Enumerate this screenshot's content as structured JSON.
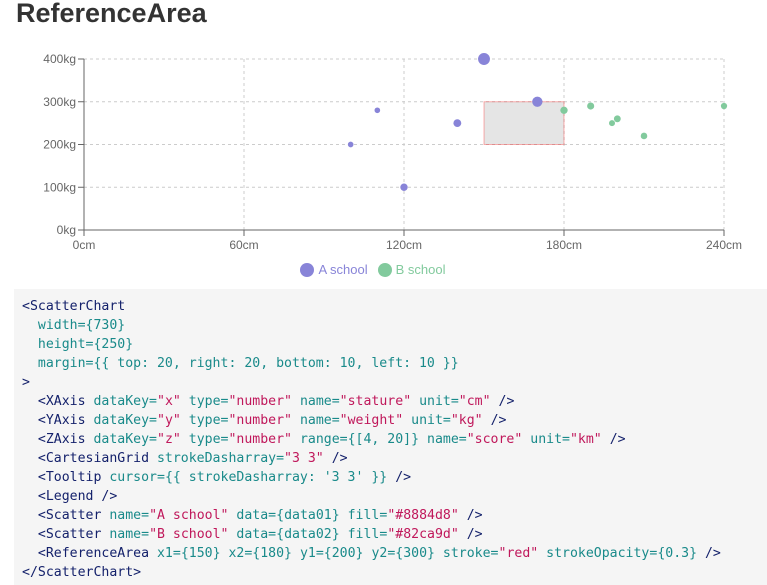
{
  "page": {
    "title": "ReferenceArea"
  },
  "chart_data": {
    "type": "scatter",
    "x_ticks": [
      "0cm",
      "60cm",
      "120cm",
      "180cm",
      "240cm"
    ],
    "y_ticks": [
      "0kg",
      "100kg",
      "200kg",
      "300kg",
      "400kg"
    ],
    "xlim": [
      0,
      240
    ],
    "ylim": [
      0,
      400
    ],
    "x_unit": "cm",
    "y_unit": "kg",
    "z_range_px": [
      4,
      20
    ],
    "grid": true,
    "legend_position": "bottom",
    "series": [
      {
        "name": "A school",
        "color": "#8884d8",
        "points": [
          {
            "x": 100,
            "y": 200,
            "z": 200
          },
          {
            "x": 120,
            "y": 100,
            "z": 260
          },
          {
            "x": 170,
            "y": 300,
            "z": 400
          },
          {
            "x": 140,
            "y": 250,
            "z": 280
          },
          {
            "x": 150,
            "y": 400,
            "z": 500
          },
          {
            "x": 110,
            "y": 280,
            "z": 200
          }
        ]
      },
      {
        "name": "B school",
        "color": "#82ca9d",
        "points": [
          {
            "x": 200,
            "y": 260,
            "z": 240
          },
          {
            "x": 240,
            "y": 290,
            "z": 220
          },
          {
            "x": 190,
            "y": 290,
            "z": 250
          },
          {
            "x": 198,
            "y": 250,
            "z": 210
          },
          {
            "x": 180,
            "y": 280,
            "z": 260
          },
          {
            "x": 210,
            "y": 220,
            "z": 230
          }
        ]
      }
    ],
    "reference_area": {
      "x1": 150,
      "x2": 180,
      "y1": 200,
      "y2": 300,
      "stroke": "red",
      "stroke_opacity": 0.3,
      "fill": "#cccccc"
    }
  },
  "code": {
    "lines": [
      [
        [
          "tag",
          "<ScatterChart"
        ]
      ],
      [
        [
          "plain",
          "  "
        ],
        [
          "attr",
          "width="
        ],
        [
          "brace",
          "{730}"
        ]
      ],
      [
        [
          "plain",
          "  "
        ],
        [
          "attr",
          "height="
        ],
        [
          "brace",
          "{250}"
        ]
      ],
      [
        [
          "plain",
          "  "
        ],
        [
          "attr",
          "margin="
        ],
        [
          "brace",
          "{{ top: 20, right: 20, bottom: 10, left: 10 }}"
        ]
      ],
      [
        [
          "tag",
          ">"
        ]
      ],
      [
        [
          "plain",
          "  "
        ],
        [
          "tag",
          "<XAxis "
        ],
        [
          "attr",
          "dataKey="
        ],
        [
          "str",
          "\"x\""
        ],
        [
          "plain",
          " "
        ],
        [
          "attr",
          "type="
        ],
        [
          "str",
          "\"number\""
        ],
        [
          "plain",
          " "
        ],
        [
          "attr",
          "name="
        ],
        [
          "str",
          "\"stature\""
        ],
        [
          "plain",
          " "
        ],
        [
          "attr",
          "unit="
        ],
        [
          "str",
          "\"cm\""
        ],
        [
          "plain",
          " "
        ],
        [
          "tag",
          "/>"
        ]
      ],
      [
        [
          "plain",
          "  "
        ],
        [
          "tag",
          "<YAxis "
        ],
        [
          "attr",
          "dataKey="
        ],
        [
          "str",
          "\"y\""
        ],
        [
          "plain",
          " "
        ],
        [
          "attr",
          "type="
        ],
        [
          "str",
          "\"number\""
        ],
        [
          "plain",
          " "
        ],
        [
          "attr",
          "name="
        ],
        [
          "str",
          "\"weight\""
        ],
        [
          "plain",
          " "
        ],
        [
          "attr",
          "unit="
        ],
        [
          "str",
          "\"kg\""
        ],
        [
          "plain",
          " "
        ],
        [
          "tag",
          "/>"
        ]
      ],
      [
        [
          "plain",
          "  "
        ],
        [
          "tag",
          "<ZAxis "
        ],
        [
          "attr",
          "dataKey="
        ],
        [
          "str",
          "\"z\""
        ],
        [
          "plain",
          " "
        ],
        [
          "attr",
          "type="
        ],
        [
          "str",
          "\"number\""
        ],
        [
          "plain",
          " "
        ],
        [
          "attr",
          "range="
        ],
        [
          "brace",
          "{[4, 20]}"
        ],
        [
          "plain",
          " "
        ],
        [
          "attr",
          "name="
        ],
        [
          "str",
          "\"score\""
        ],
        [
          "plain",
          " "
        ],
        [
          "attr",
          "unit="
        ],
        [
          "str",
          "\"km\""
        ],
        [
          "plain",
          " "
        ],
        [
          "tag",
          "/>"
        ]
      ],
      [
        [
          "plain",
          "  "
        ],
        [
          "tag",
          "<CartesianGrid "
        ],
        [
          "attr",
          "strokeDasharray="
        ],
        [
          "str",
          "\"3 3\""
        ],
        [
          "plain",
          " "
        ],
        [
          "tag",
          "/>"
        ]
      ],
      [
        [
          "plain",
          "  "
        ],
        [
          "tag",
          "<Tooltip "
        ],
        [
          "attr",
          "cursor="
        ],
        [
          "brace",
          "{{ strokeDasharray: '3 3' }}"
        ],
        [
          "plain",
          " "
        ],
        [
          "tag",
          "/>"
        ]
      ],
      [
        [
          "plain",
          "  "
        ],
        [
          "tag",
          "<Legend "
        ],
        [
          "tag",
          "/>"
        ]
      ],
      [
        [
          "plain",
          "  "
        ],
        [
          "tag",
          "<Scatter "
        ],
        [
          "attr",
          "name="
        ],
        [
          "str",
          "\"A school\""
        ],
        [
          "plain",
          " "
        ],
        [
          "attr",
          "data="
        ],
        [
          "brace",
          "{data01}"
        ],
        [
          "plain",
          " "
        ],
        [
          "attr",
          "fill="
        ],
        [
          "str",
          "\"#8884d8\""
        ],
        [
          "plain",
          " "
        ],
        [
          "tag",
          "/>"
        ]
      ],
      [
        [
          "plain",
          "  "
        ],
        [
          "tag",
          "<Scatter "
        ],
        [
          "attr",
          "name="
        ],
        [
          "str",
          "\"B school\""
        ],
        [
          "plain",
          " "
        ],
        [
          "attr",
          "data="
        ],
        [
          "brace",
          "{data02}"
        ],
        [
          "plain",
          " "
        ],
        [
          "attr",
          "fill="
        ],
        [
          "str",
          "\"#82ca9d\""
        ],
        [
          "plain",
          " "
        ],
        [
          "tag",
          "/>"
        ]
      ],
      [
        [
          "plain",
          "  "
        ],
        [
          "tag",
          "<ReferenceArea "
        ],
        [
          "attr",
          "x1="
        ],
        [
          "brace",
          "{150}"
        ],
        [
          "plain",
          " "
        ],
        [
          "attr",
          "x2="
        ],
        [
          "brace",
          "{180}"
        ],
        [
          "plain",
          " "
        ],
        [
          "attr",
          "y1="
        ],
        [
          "brace",
          "{200}"
        ],
        [
          "plain",
          " "
        ],
        [
          "attr",
          "y2="
        ],
        [
          "brace",
          "{300}"
        ],
        [
          "plain",
          " "
        ],
        [
          "attr",
          "stroke="
        ],
        [
          "str",
          "\"red\""
        ],
        [
          "plain",
          " "
        ],
        [
          "attr",
          "strokeOpacity="
        ],
        [
          "brace",
          "{0.3}"
        ],
        [
          "plain",
          " "
        ],
        [
          "tag",
          "/>"
        ]
      ],
      [
        [
          "tag",
          "</ScatterChart>"
        ]
      ]
    ]
  }
}
